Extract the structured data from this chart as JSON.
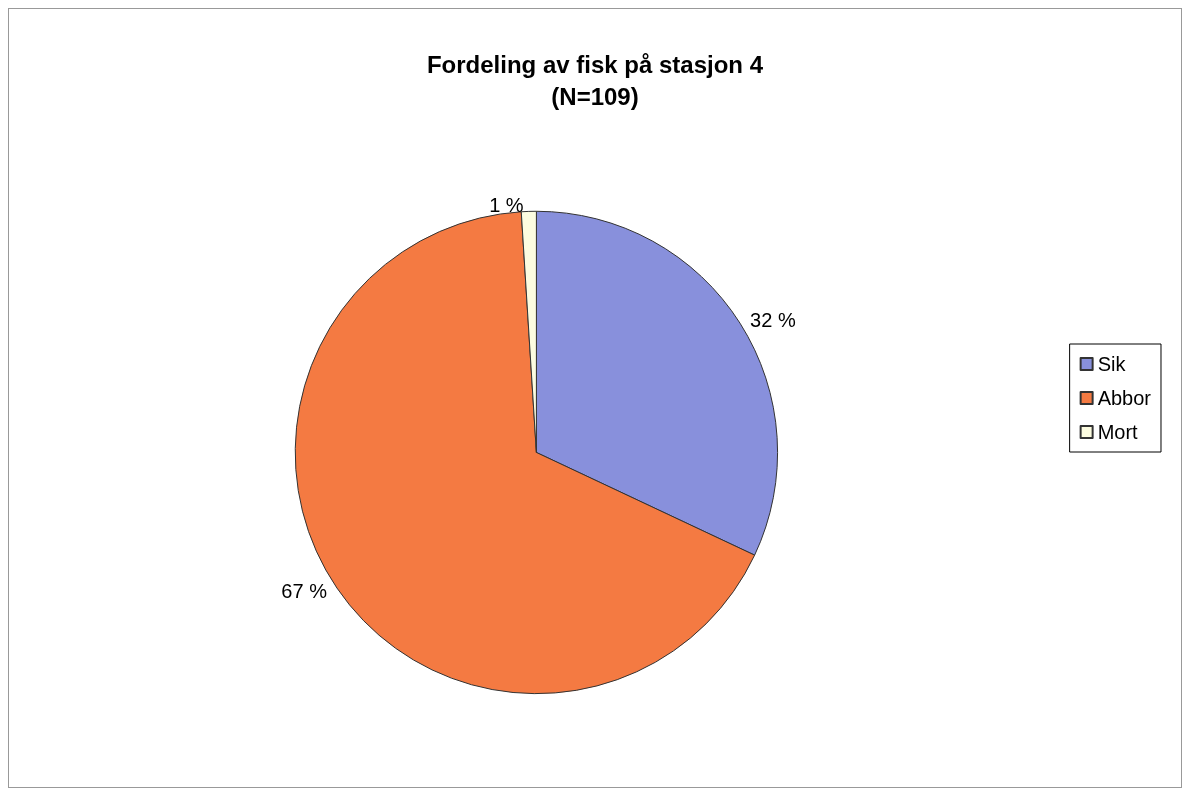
{
  "chart_data": {
    "type": "pie",
    "title": "Fordeling av fisk på stasjon 4",
    "subtitle": "(N=109)",
    "categories": [
      "Sik",
      "Abbor",
      "Mort"
    ],
    "values": [
      32,
      67,
      1
    ],
    "colors": [
      "#8890dc",
      "#f47a42",
      "#fcfce0"
    ],
    "value_labels": [
      "32 %",
      "67 %",
      "1 %"
    ],
    "legend": "right"
  }
}
